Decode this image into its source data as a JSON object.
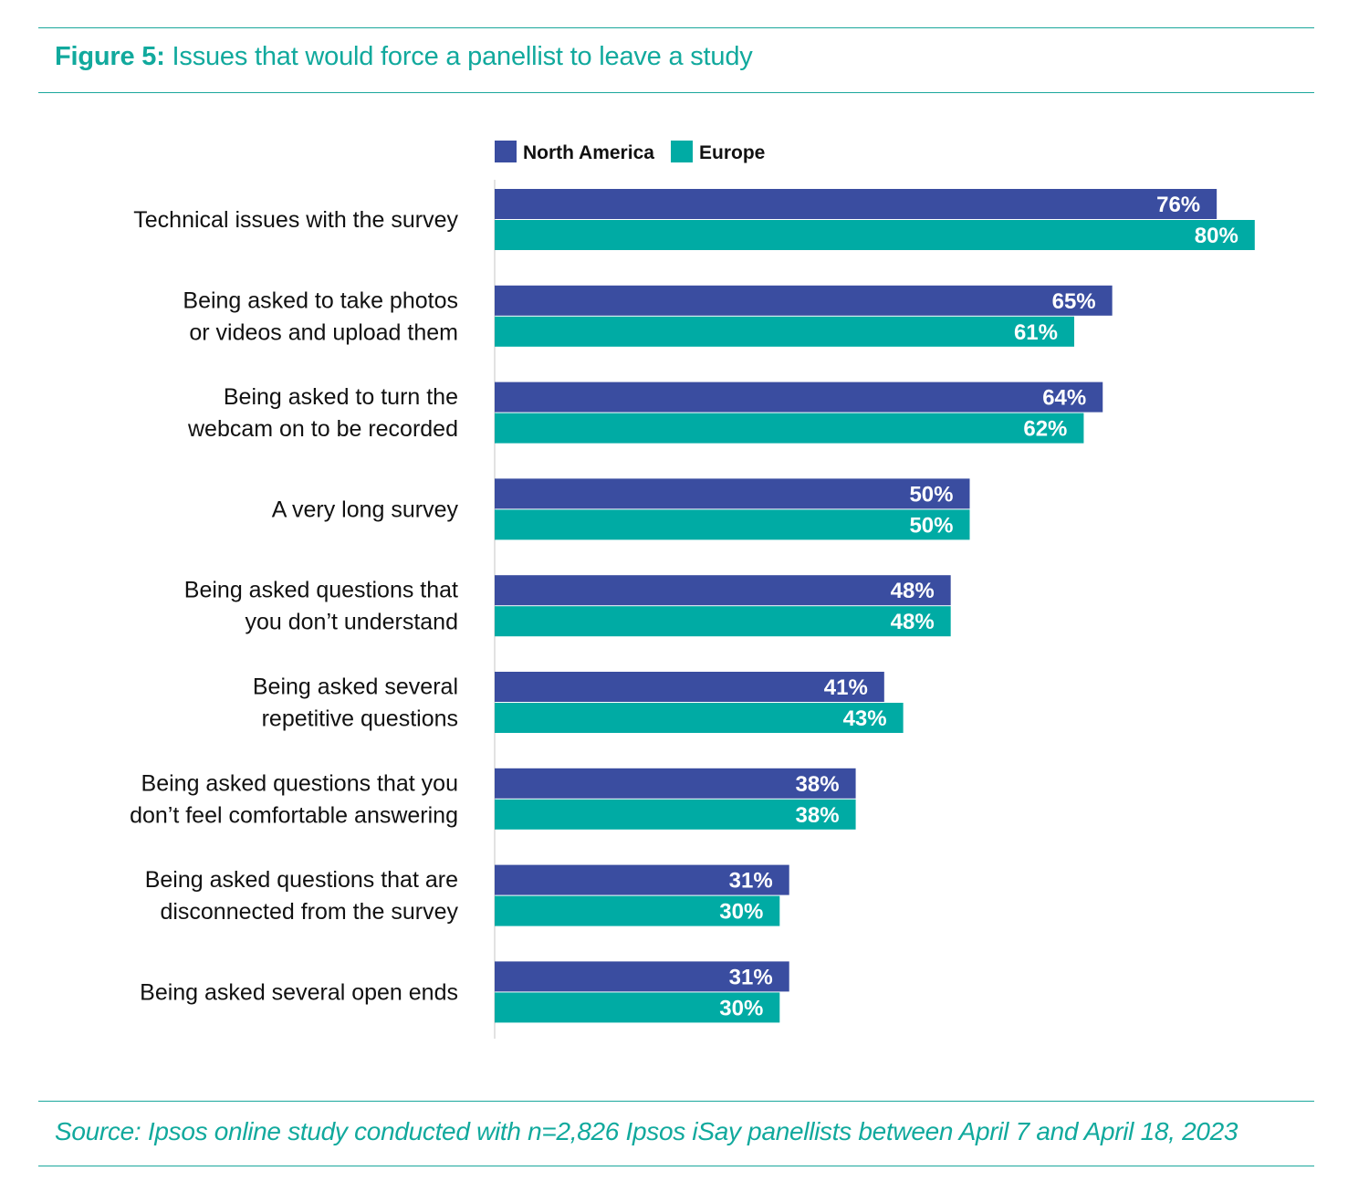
{
  "figure": {
    "number_label": "Figure 5:",
    "title_text": "Issues that would force a panellist to leave a study"
  },
  "source": "Source: Ipsos online study conducted with n=2,826 Ipsos iSay panellists between April 7 and April 18, 2023",
  "colors": {
    "accent": "#11a99d",
    "north_america": "#3a4da0",
    "europe": "#00aba4"
  },
  "chart_data": {
    "type": "bar",
    "orientation": "horizontal",
    "title": "Issues that would force a panellist to leave a study",
    "xlim": [
      0,
      100
    ],
    "grid": false,
    "legend_position": "top",
    "categories": [
      [
        "Technical issues with the survey"
      ],
      [
        "Being asked to take photos",
        "or videos and upload them"
      ],
      [
        "Being asked to turn the",
        "webcam on to be recorded"
      ],
      [
        "A very long survey"
      ],
      [
        "Being asked questions that",
        "you don’t understand"
      ],
      [
        "Being asked several",
        "repetitive questions"
      ],
      [
        "Being asked questions that you",
        "don’t feel comfortable answering"
      ],
      [
        "Being asked questions that are",
        "disconnected from the survey"
      ],
      [
        "Being asked several open ends"
      ]
    ],
    "series": [
      {
        "name": "North America",
        "color": "#3a4da0",
        "values": [
          76,
          65,
          64,
          50,
          48,
          41,
          38,
          31,
          31
        ],
        "labels": [
          "76%",
          "65%",
          "64%",
          "50%",
          "48%",
          "41%",
          "38%",
          "31%",
          "31%"
        ]
      },
      {
        "name": "Europe",
        "color": "#00aba4",
        "values": [
          80,
          61,
          62,
          50,
          48,
          43,
          38,
          30,
          30
        ],
        "labels": [
          "80%",
          "61%",
          "62%",
          "50%",
          "48%",
          "43%",
          "38%",
          "30%",
          "30%"
        ]
      }
    ]
  }
}
